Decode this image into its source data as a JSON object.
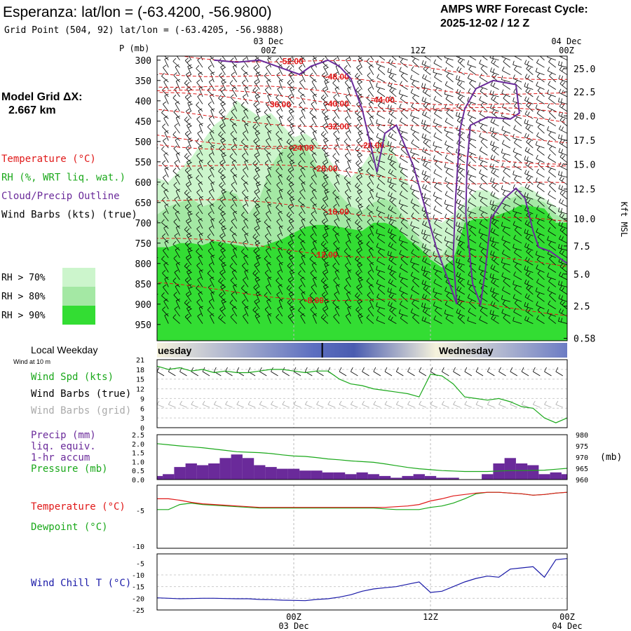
{
  "header": {
    "title": "Esperanza:  lat/lon = (-63.4200, -56.9800)",
    "grid_point": "Grid Point (504, 92) lat/lon = (-63.4205, -56.9888)",
    "cycle_label": "AMPS WRF Forecast Cycle:",
    "cycle_value": "2025-12-02 / 12  Z"
  },
  "left_panel": {
    "p_label": "P (mb)",
    "grid_label": "Model Grid ΔX:",
    "grid_value": "2.667 km",
    "legend": [
      {
        "text": "Temperature (°C)",
        "color": "#e01818"
      },
      {
        "text": "RH (%, WRT liq. wat.)",
        "color": "#1aa81a"
      },
      {
        "text": "Cloud/Precip Outline",
        "color": "#6a2a9a"
      },
      {
        "text": "Wind Barbs (kts) (true)",
        "color": "#000000"
      }
    ],
    "rh_legend": [
      {
        "text": "RH > 70%",
        "color": "#ccf5cc"
      },
      {
        "text": "RH > 80%",
        "color": "#a4e8a4"
      },
      {
        "text": "RH > 90%",
        "color": "#33dd33"
      }
    ]
  },
  "time_axis": {
    "top_dates": [
      "03 Dec",
      "04 Dec"
    ],
    "ticks": [
      {
        "hours": 12,
        "label": "00Z",
        "date": "03 Dec"
      },
      {
        "hours": 24,
        "label": "12Z",
        "date": ""
      },
      {
        "hours": 36,
        "label": "00Z",
        "date": "04 Dec"
      }
    ],
    "start_hours": 0,
    "end_hours": 36
  },
  "weekday_bar": {
    "label": "Local Weekday",
    "sub": "Wind at 10 m",
    "days": [
      "uesday",
      "Wednesday"
    ],
    "divider_hours": 14.5
  },
  "panel_labels": {
    "wind": [
      {
        "text": "Wind Spd (kts)",
        "color": "#1aa81a"
      },
      {
        "text": "Wind Barbs (true)",
        "color": "#000000"
      },
      {
        "text": "Wind Barbs (grid)",
        "color": "#aaaaaa"
      }
    ],
    "precip": [
      {
        "text": "Precip (mm)",
        "color": "#6a2a9a"
      },
      {
        "text": "liq. equiv.",
        "color": "#6a2a9a"
      },
      {
        "text": "1-hr accum",
        "color": "#6a2a9a"
      },
      {
        "text": "Pressure (mb)",
        "color": "#1aa81a"
      }
    ],
    "pressure_unit": "(mb)",
    "temp": [
      {
        "text": "Temperature (°C)",
        "color": "#e01818"
      },
      {
        "text": "Dewpoint (°C)",
        "color": "#1aa81a"
      }
    ],
    "chill": [
      {
        "text": "Wind Chill T (°C)",
        "color": "#1a1aa8"
      }
    ]
  },
  "chart_data": [
    {
      "type": "contour",
      "name": "cross-section",
      "y_pressure_ticks": [
        300,
        350,
        400,
        450,
        500,
        550,
        600,
        650,
        700,
        750,
        800,
        850,
        900,
        950
      ],
      "ylim_mb": [
        290,
        990
      ],
      "right_axis_label": "Kft MSL",
      "right_axis_ticks": [
        "25.0",
        "22.5",
        "20.0",
        "17.5",
        "15.0",
        "12.5",
        "10.0",
        "7.5",
        "5.0",
        "2.5",
        "0.58"
      ],
      "right_axis_mb": [
        321,
        378,
        437,
        497,
        556,
        617,
        690,
        757,
        826,
        905,
        984
      ],
      "temperature_contours": [
        {
          "label": "-52.00",
          "hours": 11.8,
          "mb": 312
        },
        {
          "label": "-48.00",
          "hours": 15.8,
          "mb": 355
        },
        {
          "label": "-44.00",
          "hours": 19.8,
          "mb": 388
        },
        {
          "label": "-40.00",
          "hours": 15.8,
          "mb": 405
        },
        {
          "label": "-36.00",
          "hours": 10.7,
          "mb": 418
        },
        {
          "label": "-32.00",
          "hours": 15.8,
          "mb": 462
        },
        {
          "label": "-28.00",
          "hours": 18.9,
          "mb": 518
        },
        {
          "label": "-24.00",
          "hours": 12.7,
          "mb": 532
        },
        {
          "label": "-20.00",
          "hours": 14.8,
          "mb": 580
        },
        {
          "label": "-16.00",
          "hours": 15.8,
          "mb": 673
        },
        {
          "label": "-12.00",
          "hours": 14.8,
          "mb": 775
        },
        {
          "label": "-8.00",
          "hours": 13.8,
          "mb": 888
        }
      ],
      "rh_gt_90_top_mb": [
        760,
        760,
        750,
        750,
        755,
        745,
        750,
        755,
        760,
        760,
        750,
        740,
        725,
        710,
        705,
        705,
        710,
        715,
        720,
        700,
        700,
        710,
        740,
        760,
        790,
        810,
        790,
        700,
        690,
        690,
        680,
        670,
        655,
        660,
        665,
        700,
        700
      ],
      "rh_gt_80_top_mb": [
        680,
        660,
        650,
        640,
        660,
        650,
        620,
        630,
        680,
        640,
        560,
        520,
        505,
        510,
        560,
        590,
        630,
        660,
        670,
        650,
        640,
        660,
        700,
        740,
        770,
        780,
        740,
        680,
        660,
        660,
        650,
        640,
        630,
        640,
        650,
        680,
        690
      ],
      "rh_gt_70_top_mb": [
        590,
        600,
        570,
        540,
        500,
        460,
        440,
        400,
        420,
        440,
        430,
        460,
        490,
        480,
        500,
        540,
        580,
        590,
        560,
        520,
        480,
        540,
        600,
        650,
        690,
        700,
        680,
        650,
        620,
        620,
        640,
        630,
        610,
        620,
        640,
        660,
        680
      ]
    },
    {
      "type": "line",
      "name": "wind-speed",
      "ylim": [
        0,
        21
      ],
      "y_ticks": [
        0,
        3,
        6,
        9,
        12,
        15,
        18,
        21
      ],
      "x_hours": [
        0,
        1,
        2,
        3,
        4,
        5,
        6,
        7,
        8,
        9,
        10,
        11,
        12,
        13,
        14,
        15,
        16,
        17,
        18,
        19,
        20,
        21,
        22,
        23,
        24,
        25,
        26,
        27,
        28,
        29,
        30,
        31,
        32,
        33,
        34,
        35,
        36
      ],
      "series": [
        {
          "name": "Wind Spd (kts)",
          "values": [
            19,
            18,
            18.5,
            17.5,
            18,
            17,
            17.5,
            17,
            17,
            17.5,
            18,
            18,
            17.5,
            17,
            17.5,
            17.5,
            15,
            13.5,
            13,
            12,
            11.5,
            11,
            10.5,
            9.5,
            16.5,
            16,
            13.5,
            9.5,
            9,
            8.5,
            9,
            8,
            6.5,
            6,
            3,
            1.5,
            3
          ]
        }
      ]
    },
    {
      "type": "bar+line",
      "name": "precip-pressure",
      "ylim_precip": [
        0,
        2.5
      ],
      "y_ticks_precip": [
        "0.0",
        "0.5",
        "1.0",
        "1.5",
        "2.0",
        "2.5"
      ],
      "ylim_pressure": [
        960,
        980
      ],
      "y_ticks_pressure": [
        "960",
        "965",
        "970",
        "975",
        "980"
      ],
      "precip_mm": [
        0.2,
        0.3,
        0.7,
        0.9,
        0.8,
        0.9,
        1.2,
        1.4,
        1.2,
        0.8,
        0.7,
        0.6,
        0.6,
        0.5,
        0.5,
        0.4,
        0.4,
        0.3,
        0.4,
        0.3,
        0.2,
        0.1,
        0.2,
        0.3,
        0.2,
        0.1,
        0.1,
        0.0,
        0.0,
        0.3,
        0.9,
        1.2,
        0.9,
        0.8,
        0.3,
        0.4,
        0.3
      ],
      "pressure_mb": [
        976,
        975.5,
        975,
        974.6,
        974.2,
        973.6,
        973,
        972.4,
        972.2,
        972,
        971.6,
        971,
        970.5,
        970.3,
        969.8,
        969.2,
        968.8,
        968.3,
        968,
        967.7,
        967,
        966.2,
        965.4,
        964.8,
        964.4,
        964,
        963.8,
        963.6,
        963.6,
        963.6,
        963.8,
        964,
        964,
        964.1,
        964.2,
        964.6,
        965
      ]
    },
    {
      "type": "line",
      "name": "temperature-dewpoint",
      "y_ticks": [
        -5,
        -10
      ],
      "ylim": [
        -10.3,
        -1.5
      ],
      "series": [
        {
          "name": "Temperature (°C)",
          "values": [
            -3.4,
            -3.4,
            -3.6,
            -3.9,
            -4.1,
            -4.2,
            -4.3,
            -4.4,
            -4.5,
            -4.6,
            -4.6,
            -4.6,
            -4.6,
            -4.6,
            -4.6,
            -4.6,
            -4.6,
            -4.6,
            -4.6,
            -4.6,
            -4.6,
            -4.5,
            -4.4,
            -4.2,
            -3.7,
            -3.4,
            -3.0,
            -2.8,
            -2.6,
            -2.5,
            -2.5,
            -2.6,
            -2.7,
            -2.9,
            -2.8,
            -2.6,
            -2.5
          ]
        },
        {
          "name": "Dewpoint (°C)",
          "values": [
            -4.9,
            -4.9,
            -4.2,
            -4.0,
            -4.2,
            -4.3,
            -4.4,
            -4.5,
            -4.6,
            -4.7,
            -4.7,
            -4.7,
            -4.7,
            -4.7,
            -4.7,
            -4.7,
            -4.7,
            -4.7,
            -4.7,
            -4.7,
            -4.8,
            -4.9,
            -4.9,
            -4.9,
            -4.6,
            -4.4,
            -4.0,
            -3.4,
            -2.7,
            -2.5,
            -2.5,
            -2.6,
            -2.7,
            -2.9,
            -2.8,
            -2.6,
            -2.5
          ]
        }
      ]
    },
    {
      "type": "line",
      "name": "wind-chill",
      "y_ticks": [
        -5,
        -10,
        -15,
        -20,
        -25
      ],
      "ylim": [
        -25,
        -1
      ],
      "series": [
        {
          "name": "Wind Chill T (°C)",
          "values": [
            -19.8,
            -20,
            -20.2,
            -20.1,
            -20,
            -20,
            -20.1,
            -20.2,
            -20.2,
            -20.5,
            -20.6,
            -20.8,
            -20.9,
            -21,
            -20.5,
            -20.2,
            -19.5,
            -18.5,
            -17,
            -16,
            -15.5,
            -15,
            -14,
            -13,
            -17.5,
            -17,
            -15,
            -13,
            -11.5,
            -10.5,
            -11,
            -7.5,
            -7,
            -6.5,
            -11,
            -3.5,
            -3
          ]
        }
      ]
    }
  ]
}
